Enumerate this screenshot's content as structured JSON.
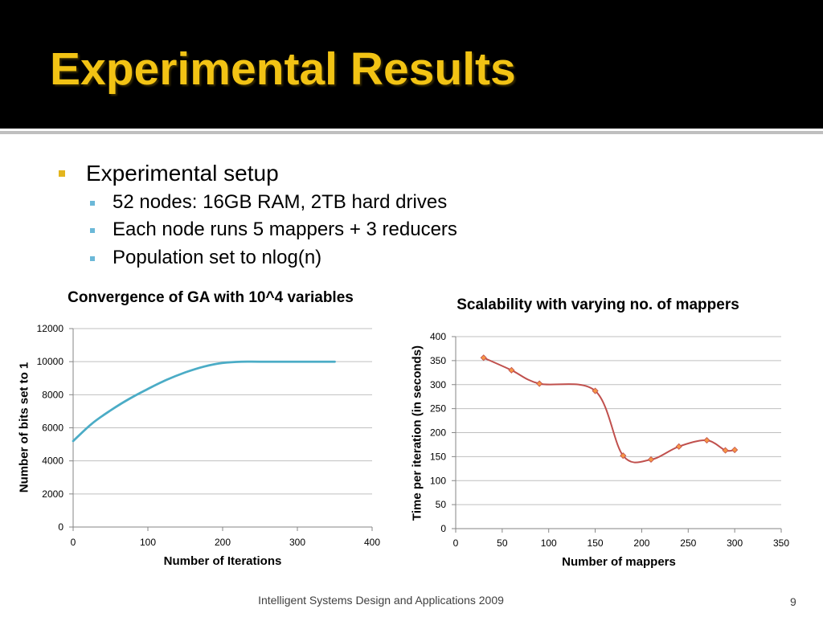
{
  "theme": {
    "header_background": "#000000",
    "title_color": "#F2C314",
    "rule_color": "#BFBFBF",
    "bullet_level1_color": "#E3B51E",
    "bullet_level2_color": "#6BB8D8",
    "text_color": "#000000",
    "footer_color": "#404040"
  },
  "slide": {
    "title": "Experimental Results",
    "bullets": [
      {
        "text": "Experimental setup",
        "children": [
          "52 nodes: 16GB RAM, 2TB hard drives",
          "Each node runs 5 mappers + 3 reducers",
          "Population set to nlog(n)"
        ]
      }
    ],
    "footer": "Intelligent Systems Design and Applications 2009",
    "page_number": "9"
  },
  "chart_data": [
    {
      "type": "line",
      "title": "Convergence of GA with 10^4 variables",
      "xlabel": "Number of Iterations",
      "ylabel": "Number of bits set to 1",
      "xlim": [
        0,
        400
      ],
      "ylim": [
        0,
        12000
      ],
      "x_ticks": [
        0,
        100,
        200,
        300,
        400
      ],
      "y_ticks": [
        0,
        2000,
        4000,
        6000,
        8000,
        10000,
        12000
      ],
      "grid": "horizontal",
      "legend": false,
      "series": [
        {
          "color": "#4BACC6",
          "x": [
            0,
            25,
            50,
            75,
            100,
            125,
            150,
            175,
            200,
            225,
            250,
            300,
            350
          ],
          "y": [
            5200,
            6250,
            7050,
            7750,
            8350,
            8900,
            9350,
            9700,
            9920,
            10000,
            10000,
            10000,
            10000
          ]
        }
      ]
    },
    {
      "type": "line",
      "title": "Scalability with varying no. of mappers",
      "xlabel": "Number of mappers",
      "ylabel": "Time per iteration (in seconds)",
      "xlim": [
        0,
        350
      ],
      "ylim": [
        0,
        400
      ],
      "x_ticks": [
        0,
        50,
        100,
        150,
        200,
        250,
        300,
        350
      ],
      "y_ticks": [
        0,
        50,
        100,
        150,
        200,
        250,
        300,
        350,
        400
      ],
      "grid": "horizontal",
      "legend": false,
      "smoothed": true,
      "markers": "diamond",
      "series": [
        {
          "color": "#C0504D",
          "marker_color": "#F79646",
          "x": [
            30,
            60,
            90,
            150,
            180,
            210,
            240,
            270,
            290,
            300
          ],
          "y": [
            356,
            330,
            302,
            287,
            152,
            144,
            171,
            184,
            163,
            164
          ]
        }
      ]
    }
  ]
}
